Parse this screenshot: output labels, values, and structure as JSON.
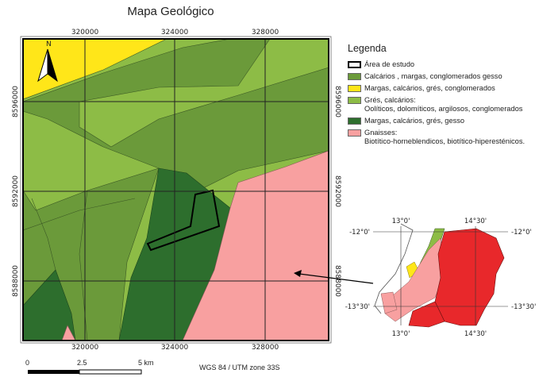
{
  "title": "Mapa Geológico",
  "map": {
    "x_ticks": [
      "320000",
      "324000",
      "328000"
    ],
    "y_ticks": [
      "8596000",
      "8592000",
      "8588000"
    ],
    "north_arrow_label": "N"
  },
  "legend": {
    "title": "Legenda",
    "items": [
      {
        "label": "Área de estudo",
        "color": "#ffffff",
        "border": "#000000"
      },
      {
        "label": "Calcários , margas, conglomerados gesso",
        "color": "#6b9a3a"
      },
      {
        "label": "Margas, calcários, grés, conglomerados",
        "color": "#ffe619"
      },
      {
        "label": "Grés, calcários:\nOolíticos, dolomíticos, argilosos, conglomerados",
        "color": "#8dbc46"
      },
      {
        "label": "Margas, calcários, grés, gesso",
        "color": "#2d6e2d"
      },
      {
        "label": "Gnaisses:\nBiotítico-horneblendicos, biotítico-hiperesténicos.",
        "color": "#f8a0a0"
      }
    ]
  },
  "scale_bar": {
    "labels": [
      "0",
      "2.5",
      "5 km"
    ]
  },
  "crs": "WGS 84 / UTM zone 33S",
  "inset": {
    "lon_labels": [
      "13°0'",
      "14°30'"
    ],
    "lat_labels": [
      "-12°0'",
      "-13°30'"
    ]
  }
}
